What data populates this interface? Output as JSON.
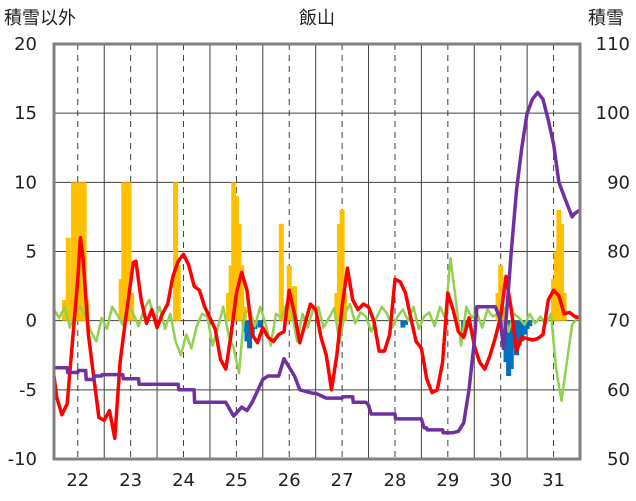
{
  "chart_data": {
    "type": "line",
    "title": "飯山",
    "ylabel_left": "積雪以外",
    "ylabel_right": "積雪",
    "x_ticks": [
      "22",
      "23",
      "24",
      "25",
      "26",
      "27",
      "28",
      "29",
      "30",
      "31"
    ],
    "x_range": [
      21.55,
      31.5
    ],
    "y_left_range": [
      -10,
      20
    ],
    "y_left_ticks": [
      "-10",
      "-5",
      "0",
      "5",
      "10",
      "15",
      "20"
    ],
    "y_right_range": [
      50,
      110
    ],
    "y_right_ticks": [
      "50",
      "60",
      "70",
      "80",
      "90",
      "100",
      "110"
    ],
    "grid": true,
    "colors": {
      "temperature": "#ff0000",
      "sunshine_or_green": "#92d050",
      "snow_depth": "#7030a0",
      "precipitation": "#ffc000",
      "snowdepth_change": "#0070c0",
      "frame": "#808080",
      "grid": "#404040"
    },
    "series_red": {
      "x": [
        21.55,
        21.6,
        21.7,
        21.8,
        21.9,
        22.0,
        22.05,
        22.1,
        22.2,
        22.3,
        22.4,
        22.5,
        22.6,
        22.7,
        22.8,
        22.9,
        23.0,
        23.05,
        23.1,
        23.2,
        23.3,
        23.4,
        23.5,
        23.6,
        23.7,
        23.8,
        23.9,
        24.0,
        24.1,
        24.2,
        24.3,
        24.4,
        24.5,
        24.6,
        24.7,
        24.8,
        24.9,
        25.0,
        25.1,
        25.2,
        25.3,
        25.4,
        25.5,
        25.6,
        25.7,
        25.8,
        25.9,
        26.0,
        26.1,
        26.2,
        26.3,
        26.4,
        26.5,
        26.6,
        26.7,
        26.8,
        26.9,
        27.0,
        27.1,
        27.2,
        27.3,
        27.4,
        27.5,
        27.6,
        27.7,
        27.8,
        27.9,
        28.0,
        28.1,
        28.2,
        28.3,
        28.4,
        28.5,
        28.6,
        28.7,
        28.8,
        28.9,
        29.0,
        29.1,
        29.2,
        29.3,
        29.4,
        29.5,
        29.6,
        29.7,
        29.8,
        29.9,
        30.0,
        30.1,
        30.2,
        30.3,
        30.4,
        30.5,
        30.6,
        30.7,
        30.8,
        30.9,
        31.0,
        31.1,
        31.2,
        31.3,
        31.4,
        31.5
      ],
      "y": [
        -4.0,
        -5.5,
        -6.8,
        -6.0,
        -1.5,
        3.0,
        6.0,
        4.5,
        -1.0,
        -4.0,
        -7.0,
        -7.2,
        -6.5,
        -8.5,
        -3.0,
        0.0,
        2.8,
        4.2,
        4.3,
        1.5,
        -0.2,
        0.8,
        -0.5,
        0.5,
        1.2,
        3.2,
        4.3,
        4.8,
        4.0,
        2.5,
        2.2,
        1.0,
        0.2,
        -0.6,
        -2.8,
        -3.5,
        -1.0,
        2.0,
        3.5,
        2.2,
        -1.0,
        -1.6,
        -0.5,
        -1.2,
        -1.5,
        -1.0,
        -0.8,
        2.2,
        0.5,
        -1.6,
        -0.2,
        1.2,
        0.8,
        -1.2,
        -2.5,
        -5.0,
        -2.5,
        1.0,
        3.8,
        1.5,
        0.8,
        1.2,
        1.0,
        0.0,
        -2.2,
        -2.2,
        -1.0,
        3.0,
        2.8,
        2.0,
        0.2,
        -1.5,
        -2.0,
        -4.2,
        -5.2,
        -5.0,
        -3.0,
        2.0,
        0.8,
        -0.8,
        -1.2,
        0.2,
        -1.8,
        -3.0,
        -3.5,
        -2.5,
        -1.2,
        0.3,
        3.2,
        0.8,
        -2.2,
        -1.2,
        -1.3,
        -1.4,
        -1.3,
        -1.0,
        1.5,
        2.2,
        1.8,
        0.5,
        0.6,
        0.3,
        0.2
      ],
      "axis": "left"
    },
    "series_green": {
      "x": [
        21.55,
        21.65,
        21.75,
        21.85,
        21.95,
        22.05,
        22.15,
        22.25,
        22.35,
        22.45,
        22.55,
        22.65,
        22.75,
        22.85,
        22.95,
        23.05,
        23.15,
        23.25,
        23.35,
        23.45,
        23.55,
        23.65,
        23.75,
        23.85,
        23.95,
        24.05,
        24.15,
        24.25,
        24.35,
        24.45,
        24.55,
        24.65,
        24.75,
        24.85,
        24.95,
        25.05,
        25.15,
        25.25,
        25.35,
        25.45,
        25.55,
        25.65,
        25.75,
        25.85,
        25.95,
        26.05,
        26.15,
        26.25,
        26.35,
        26.45,
        26.55,
        26.65,
        26.75,
        26.85,
        26.95,
        27.05,
        27.15,
        27.25,
        27.35,
        27.45,
        27.55,
        27.65,
        27.75,
        27.85,
        27.95,
        28.05,
        28.15,
        28.25,
        28.35,
        28.45,
        28.55,
        28.65,
        28.75,
        28.85,
        28.95,
        29.05,
        29.15,
        29.25,
        29.35,
        29.45,
        29.55,
        29.65,
        29.75,
        29.85,
        29.95,
        30.05,
        30.15,
        30.25,
        30.35,
        30.45,
        30.55,
        30.65,
        30.75,
        30.85,
        30.95,
        31.05,
        31.15,
        31.25,
        31.35,
        31.45
      ],
      "y": [
        0.8,
        0.2,
        1.0,
        -0.5,
        0.6,
        1.0,
        0.3,
        -0.8,
        -1.5,
        0.2,
        -0.6,
        1.0,
        0.4,
        -0.3,
        1.2,
        0.5,
        -0.4,
        0.8,
        1.5,
        0.2,
        1.0,
        -0.6,
        0.5,
        -1.5,
        -2.5,
        -1.0,
        -2.0,
        -0.4,
        0.5,
        0.3,
        -1.8,
        -0.5,
        1.0,
        -1.0,
        -2.0,
        -3.8,
        0.5,
        0.8,
        -0.4,
        1.0,
        -0.2,
        -1.8,
        0.5,
        0.2,
        1.2,
        0.6,
        -1.5,
        0.5,
        -0.5,
        0.8,
        1.0,
        -0.5,
        0.2,
        0.9,
        -1.6,
        0.5,
        1.2,
        -0.2,
        0.6,
        0.3,
        -0.8,
        0.2,
        1.0,
        0.5,
        -0.5,
        0.3,
        0.8,
        0.0,
        1.0,
        -0.6,
        0.3,
        0.6,
        -0.4,
        1.0,
        0.2,
        4.5,
        1.5,
        -1.8,
        1.0,
        0.2,
        0.6,
        -0.5,
        0.8,
        0.3,
        0.5,
        1.0,
        -0.8,
        0.5,
        0.2,
        -0.3,
        0.5,
        -0.2,
        0.3,
        -0.3,
        0.5,
        -3.5,
        -5.8,
        -3.0,
        -0.3,
        0.2
      ]
    },
    "series_purple": {
      "x": [
        21.55,
        21.8,
        21.81,
        22.0,
        22.01,
        22.15,
        22.16,
        22.3,
        22.31,
        22.45,
        22.46,
        22.85,
        22.86,
        23.15,
        23.16,
        23.9,
        23.91,
        24.2,
        24.21,
        24.8,
        24.85,
        24.95,
        25.1,
        25.2,
        25.3,
        25.5,
        25.6,
        25.7,
        25.8,
        25.9,
        26.1,
        26.2,
        26.45,
        26.5,
        26.7,
        27.0,
        27.01,
        27.2,
        27.21,
        27.45,
        27.5,
        27.55,
        27.56,
        28.0,
        28.01,
        28.5,
        28.55,
        28.6,
        28.61,
        28.9,
        28.91,
        29.1,
        29.2,
        29.3,
        29.4,
        29.5,
        29.55,
        29.8,
        29.9,
        30.0,
        30.05,
        30.1,
        30.2,
        30.3,
        30.4,
        30.5,
        30.6,
        30.7,
        30.8,
        30.9,
        31.0,
        31.1,
        31.2,
        31.3,
        31.35,
        31.4,
        31.5
      ],
      "y": [
        63.2,
        63.2,
        62.5,
        62.5,
        62.8,
        62.8,
        61.5,
        61.5,
        62.0,
        62.0,
        62.2,
        62.2,
        61.6,
        61.6,
        60.8,
        60.8,
        60.0,
        60.0,
        58.2,
        58.2,
        57.5,
        56.2,
        57.5,
        57.0,
        58.2,
        61.5,
        62.0,
        62.0,
        62.0,
        64.5,
        62.0,
        60.0,
        59.5,
        59.5,
        58.8,
        58.8,
        59.0,
        59.0,
        58.2,
        58.2,
        57.8,
        56.5,
        56.5,
        56.5,
        55.8,
        55.8,
        54.5,
        54.5,
        54.2,
        54.2,
        53.8,
        53.8,
        54.0,
        55.2,
        60.0,
        67.0,
        72.0,
        72.0,
        72.0,
        70.0,
        66.0,
        70.0,
        80.0,
        89.0,
        95.0,
        100.0,
        102.0,
        103.0,
        102.0,
        99.0,
        95.5,
        90.0,
        88.0,
        86.0,
        85.0,
        85.5,
        86.0
      ],
      "axis": "right"
    },
    "bars_orange": {
      "x": [
        21.75,
        21.82,
        21.87,
        21.92,
        21.97,
        22.02,
        22.07,
        22.12,
        22.17,
        22.82,
        22.87,
        22.92,
        22.97,
        23.02,
        23.85,
        23.9,
        24.85,
        24.9,
        24.95,
        25.0,
        25.05,
        25.1,
        25.15,
        25.85,
        25.88,
        26.0,
        26.1,
        26.9,
        26.95,
        27.0,
        27.05,
        29.95,
        30.0,
        30.05,
        31.0,
        31.05,
        31.1,
        31.15,
        31.2
      ],
      "y": [
        1.5,
        6.0,
        2.0,
        10.0,
        10.0,
        10.0,
        10.0,
        10.0,
        1.5,
        3.0,
        10.0,
        10.0,
        10.0,
        2.0,
        10.0,
        4.0,
        2.0,
        4.0,
        10.0,
        9.0,
        7.0,
        4.0,
        1.0,
        7.0,
        1.0,
        4.0,
        2.5,
        2.0,
        7.0,
        8.0,
        2.0,
        2.0,
        4.0,
        1.0,
        3.0,
        5.0,
        8.0,
        7.0,
        2.0
      ]
    },
    "bars_blue": {
      "x": [
        25.15,
        25.2,
        25.25,
        25.3,
        25.35,
        25.45,
        28.15,
        28.2,
        29.3,
        29.35,
        30.1,
        30.15,
        30.2,
        30.25,
        30.3,
        30.35,
        30.4,
        30.45,
        30.5,
        30.55
      ],
      "y": [
        -0.8,
        -1.5,
        -2.0,
        -1.2,
        -0.6,
        -0.5,
        -0.5,
        -0.3,
        -0.8,
        -0.5,
        -3.0,
        -4.0,
        -3.5,
        -2.0,
        -2.5,
        -1.8,
        -1.5,
        -1.0,
        -0.6,
        -0.4
      ]
    }
  }
}
